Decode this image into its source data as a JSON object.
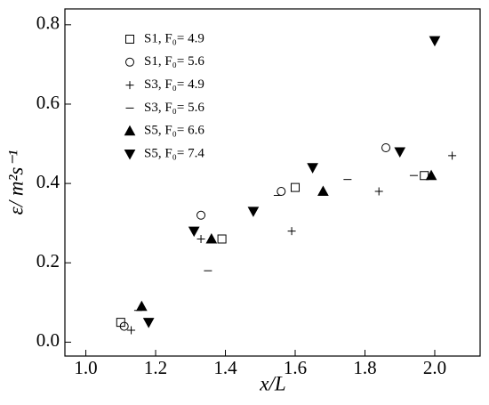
{
  "chart_data": {
    "type": "scatter",
    "x_label": "x/L",
    "y_label": "ε/ m²s⁻¹",
    "xlim": [
      0.94,
      2.13
    ],
    "ylim": [
      -0.035,
      0.84
    ],
    "xticks": [
      {
        "value": 1.0,
        "label": "1.0"
      },
      1.2,
      1.4,
      1.6,
      1.8,
      {
        "value": 2.0,
        "label": "2.0"
      }
    ],
    "yticks": [
      {
        "value": 0.0,
        "label": "0.0"
      },
      0.2,
      0.4,
      0.6,
      0.8
    ],
    "legend": "upper-left",
    "series": [
      {
        "name": "S1, F₀= 4.9",
        "marker": "square",
        "color": "#000000",
        "x": [
          1.1,
          1.39,
          1.6,
          1.97
        ],
        "values": [
          0.05,
          0.26,
          0.39,
          0.42
        ]
      },
      {
        "name": "S1, F₀= 5.6",
        "marker": "circle",
        "color": "#000000",
        "x": [
          1.11,
          1.33,
          1.56,
          1.86
        ],
        "values": [
          0.04,
          0.32,
          0.38,
          0.49
        ]
      },
      {
        "name": "S3, F₀= 4.9",
        "marker": "plus",
        "color": "#000000",
        "x": [
          1.13,
          1.33,
          1.59,
          1.84,
          2.05
        ],
        "values": [
          0.03,
          0.26,
          0.28,
          0.38,
          0.47
        ]
      },
      {
        "name": "S3, F₀= 5.6",
        "marker": "minus",
        "color": "#000000",
        "x": [
          1.15,
          1.35,
          1.55,
          1.75,
          1.94
        ],
        "values": [
          0.08,
          0.18,
          0.37,
          0.41,
          0.42
        ]
      },
      {
        "name": "S5, F₀= 6.6",
        "marker": "triangle-up",
        "color": "#000000",
        "x": [
          1.16,
          1.36,
          1.68,
          1.99
        ],
        "values": [
          0.09,
          0.26,
          0.38,
          0.42
        ]
      },
      {
        "name": "S5, F₀= 7.4",
        "marker": "triangle-down",
        "color": "#000000",
        "x": [
          1.18,
          1.31,
          1.48,
          1.65,
          1.9,
          2.0
        ],
        "values": [
          0.05,
          0.28,
          0.33,
          0.44,
          0.48,
          0.76
        ]
      }
    ]
  }
}
